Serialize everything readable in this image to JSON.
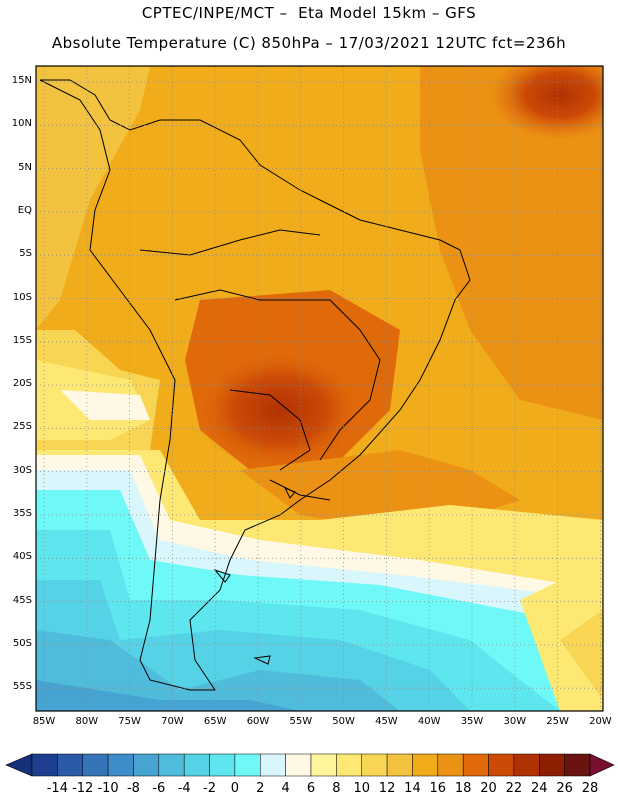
{
  "header": {
    "line1": "CPTEC/INPE/MCT –  Eta Model 15km – GFS",
    "line2": "Absolute Temperature (C) 850hPa – 17/03/2021 12UTC fct=236h"
  },
  "map": {
    "lat_labels": [
      "15N",
      "10N",
      "5N",
      "EQ",
      "5S",
      "10S",
      "15S",
      "20S",
      "25S",
      "30S",
      "35S",
      "40S",
      "45S",
      "50S",
      "55S"
    ],
    "lon_labels": [
      "85W",
      "80W",
      "75W",
      "70W",
      "65W",
      "60W",
      "55W",
      "50W",
      "45W",
      "40W",
      "35W",
      "30W",
      "25W",
      "20W"
    ]
  },
  "colorbar": {
    "labels": [
      "-14",
      "-12",
      "-10",
      "-8",
      "-6",
      "-4",
      "-2",
      "0",
      "2",
      "4",
      "6",
      "8",
      "10",
      "12",
      "14",
      "16",
      "18",
      "20",
      "22",
      "24",
      "26",
      "28"
    ],
    "colors": [
      "#1e3f8f",
      "#2a5aa8",
      "#3574b8",
      "#3f8dc8",
      "#47a4d2",
      "#4fbcdc",
      "#56d2e6",
      "#5ee6ee",
      "#6ff8f8",
      "#d8f6fb",
      "#fff8e4",
      "#fff59a",
      "#fce873",
      "#f8d653",
      "#f3c23e",
      "#f0ac1a",
      "#eb9214",
      "#e06a0a",
      "#cc4a06",
      "#b03204",
      "#8e1f02",
      "#6a1412"
    ]
  }
}
